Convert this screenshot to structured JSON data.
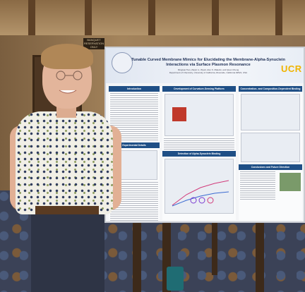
{
  "scene": {
    "background_sign_text": "BANQUET RESERVATION ONLY"
  },
  "poster": {
    "title": "Tunable Curved Membrane Mimics for Elucidating the Membrane-Alpha-Synuclein Interactions via Surface Plasmon Resonance",
    "authors": "Mingtsai Tian, Zaiyin Li, Wyatt, Alex S. Malecki, and Quan Cheng",
    "affiliation": "Department of Chemistry, University of California, Riverside, California 92521, USA",
    "logo": "UCR",
    "sections": {
      "introduction": "Introduction",
      "curvature_platform": "Development of Curvature-Sensing Platform",
      "concentration_binding": "Concentration- and Composition-Dependent Binding",
      "experimental": "Experimental Details",
      "detection": "Detection of Alpha-Synuclein Binding",
      "conclusions": "Conclusions and Future Direction"
    }
  },
  "colors": {
    "poster_header_blue": "#1f4f86",
    "ucr_gold": "#f0b400",
    "shirt_pattern": "#2f3c5e"
  }
}
